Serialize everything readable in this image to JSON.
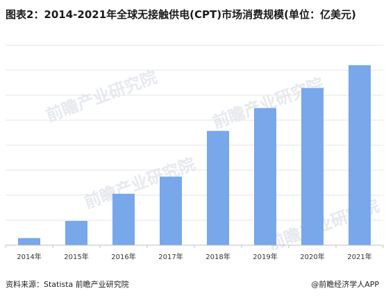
{
  "header": {
    "title": "图表2：2014-2021年全球无接触供电(CPT)市场消费规模(单位：亿美元)"
  },
  "footer": {
    "source": "资料来源：Statista 前瞻产业研究院",
    "brand": "@前瞻经济学人APP"
  },
  "watermark": {
    "text": "前瞻产业研究院"
  },
  "colors": {
    "bar": "#78a7ea",
    "grid": "#e4e4e4",
    "axis": "#bfbfbf"
  },
  "chart_data": {
    "type": "bar",
    "title": "图表2：2014-2021年全球无接触供电(CPT)市场消费规模(单位：亿美元)",
    "xlabel": "",
    "ylabel": "",
    "categories": [
      "2014年",
      "2015年",
      "2016年",
      "2017年",
      "2018年",
      "2019年",
      "2020年",
      "2021年"
    ],
    "values": [
      2.5,
      8.5,
      18,
      24,
      40,
      48,
      55,
      63
    ],
    "ylim": [
      0,
      70
    ],
    "grid": true,
    "ytick_step": 8.75,
    "legend": "none"
  }
}
